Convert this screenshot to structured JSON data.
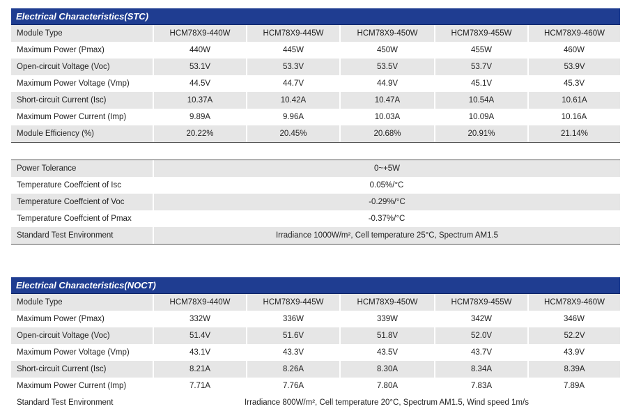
{
  "stc": {
    "title": "Electrical Characteristics(STC)",
    "columns": [
      "Module Type",
      "HCM78X9-440W",
      "HCM78X9-445W",
      "HCM78X9-450W",
      "HCM78X9-455W",
      "HCM78X9-460W"
    ],
    "rows": [
      [
        "Maximum Power (Pmax)",
        "440W",
        "445W",
        "450W",
        "455W",
        "460W"
      ],
      [
        "Open-circuit Voltage (Voc)",
        "53.1V",
        "53.3V",
        "53.5V",
        "53.7V",
        "53.9V"
      ],
      [
        "Maximum Power Voltage (Vmp)",
        "44.5V",
        "44.7V",
        "44.9V",
        "45.1V",
        "45.3V"
      ],
      [
        "Short-circuit Current (Isc)",
        "10.37A",
        "10.42A",
        "10.47A",
        "10.54A",
        "10.61A"
      ],
      [
        "Maximum Power Current (Imp)",
        "9.89A",
        "9.96A",
        "10.03A",
        "10.09A",
        "10.16A"
      ],
      [
        "Module Efficiency (%)",
        "20.22%",
        "20.45%",
        "20.68%",
        "20.91%",
        "21.14%"
      ]
    ]
  },
  "params": {
    "rows": [
      [
        "Power Tolerance",
        "0~+5W"
      ],
      [
        "Temperature Coeffcient of Isc",
        "0.05%/°C"
      ],
      [
        "Temperature Coeffcient of Voc",
        "-0.29%/°C"
      ],
      [
        "Temperature Coeffcient of Pmax",
        "-0.37%/°C"
      ],
      [
        "Standard Test Environment",
        "Irradiance 1000W/m², Cell temperature 25°C, Spectrum AM1.5"
      ]
    ]
  },
  "noct": {
    "title": "Electrical Characteristics(NOCT)",
    "columns": [
      "Module Type",
      "HCM78X9-440W",
      "HCM78X9-445W",
      "HCM78X9-450W",
      "HCM78X9-455W",
      "HCM78X9-460W"
    ],
    "rows": [
      [
        "Maximum Power (Pmax)",
        "332W",
        "336W",
        "339W",
        "342W",
        "346W"
      ],
      [
        "Open-circuit Voltage (Voc)",
        "51.4V",
        "51.6V",
        "51.8V",
        "52.0V",
        "52.2V"
      ],
      [
        "Maximum Power Voltage (Vmp)",
        "43.1V",
        "43.3V",
        "43.5V",
        "43.7V",
        "43.9V"
      ],
      [
        "Short-circuit Current (Isc)",
        "8.21A",
        "8.26A",
        "8.30A",
        "8.34A",
        "8.39A"
      ],
      [
        "Maximum Power Current (Imp)",
        "7.71A",
        "7.76A",
        "7.80A",
        "7.83A",
        "7.89A"
      ]
    ],
    "footer": [
      "Standard Test Environment",
      "Irradiance 800W/m², Cell temperature 20°C, Spectrum AM1.5, Wind speed 1m/s"
    ]
  }
}
